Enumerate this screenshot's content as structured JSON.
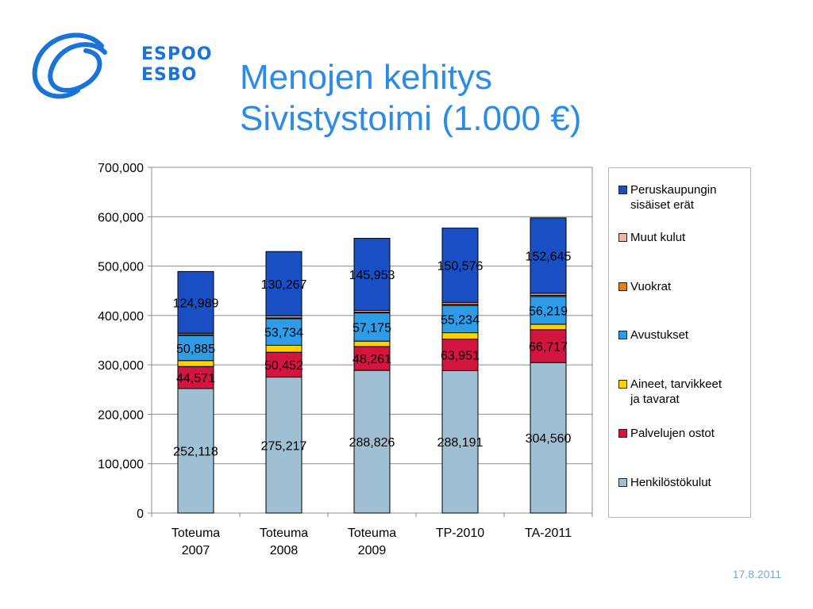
{
  "logo": {
    "line1": "ESPOO",
    "line2": "ESBO",
    "color": "#1a73d9"
  },
  "title": {
    "line1": "Menojen kehitys",
    "line2": "Sivistystoimi (1.000 €)"
  },
  "date": "17.8.2011",
  "chart_data": {
    "type": "bar",
    "stacked": true,
    "categories": [
      [
        "Toteuma",
        "2007"
      ],
      [
        "Toteuma",
        "2008"
      ],
      [
        "Toteuma",
        "2009"
      ],
      [
        "TP-2010"
      ],
      [
        "TA-2011"
      ]
    ],
    "ylim": [
      0,
      700000
    ],
    "yticks": [
      "0",
      "100,000",
      "200,000",
      "300,000",
      "400,000",
      "500,000",
      "600,000",
      "700,000"
    ],
    "grid": true,
    "legend_position": "right",
    "series": [
      {
        "name": "Henkilöstökulut",
        "color": "#9fbfd2",
        "values": [
          252118,
          275217,
          288826,
          288191,
          304560
        ],
        "labels": [
          "252,118",
          "275,217",
          "288,826",
          "288,191",
          "304,560"
        ]
      },
      {
        "name": "Palvelujen ostot",
        "color": "#d2163f",
        "values": [
          44571,
          50452,
          48261,
          63951,
          66717
        ],
        "labels": [
          "44,571",
          "50,452",
          "48,261",
          "63,951",
          "66,717"
        ]
      },
      {
        "name": "Aineet, tarvikkeet ja tavarat",
        "color": "#ffd200",
        "values": [
          12000,
          14000,
          11000,
          13000,
          11000
        ],
        "labels": [
          "",
          "",
          "",
          "",
          ""
        ]
      },
      {
        "name": "Avustukset",
        "color": "#2f9ce8",
        "values": [
          50885,
          53734,
          57175,
          55234,
          56219
        ],
        "labels": [
          "50,885",
          "53,734",
          "57,175",
          "55,234",
          "56,219"
        ]
      },
      {
        "name": "Vuokrat",
        "color": "#f07d00",
        "values": [
          1500,
          1800,
          1500,
          2500,
          2500
        ],
        "labels": [
          "",
          "",
          "",
          "",
          ""
        ]
      },
      {
        "name": "Muut kulut",
        "color": "#f5b3a8",
        "values": [
          3000,
          4000,
          3500,
          3500,
          4000
        ],
        "labels": [
          "",
          "",
          "",
          "",
          ""
        ]
      },
      {
        "name": "Peruskaupungin sisäiset erät",
        "color": "#1a4fc4",
        "values": [
          124989,
          130267,
          145953,
          150576,
          152645
        ],
        "labels": [
          "124,989",
          "130,267",
          "145,953",
          "150,576",
          "152,645"
        ]
      }
    ]
  },
  "legend": {
    "items": [
      {
        "line1": "Peruskaupungin",
        "line2": "sisäiset erät",
        "color": "#1a4fc4"
      },
      {
        "line1": "Muut kulut",
        "line2": "",
        "color": "#f5b3a8"
      },
      {
        "line1": "Vuokrat",
        "line2": "",
        "color": "#f07d00"
      },
      {
        "line1": "Avustukset",
        "line2": "",
        "color": "#2f9ce8"
      },
      {
        "line1": "Aineet, tarvikkeet",
        "line2": "ja tavarat",
        "color": "#ffd200"
      },
      {
        "line1": "Palvelujen ostot",
        "line2": "",
        "color": "#d2163f"
      },
      {
        "line1": "Henkilöstökulut",
        "line2": "",
        "color": "#9fbfd2"
      }
    ]
  }
}
